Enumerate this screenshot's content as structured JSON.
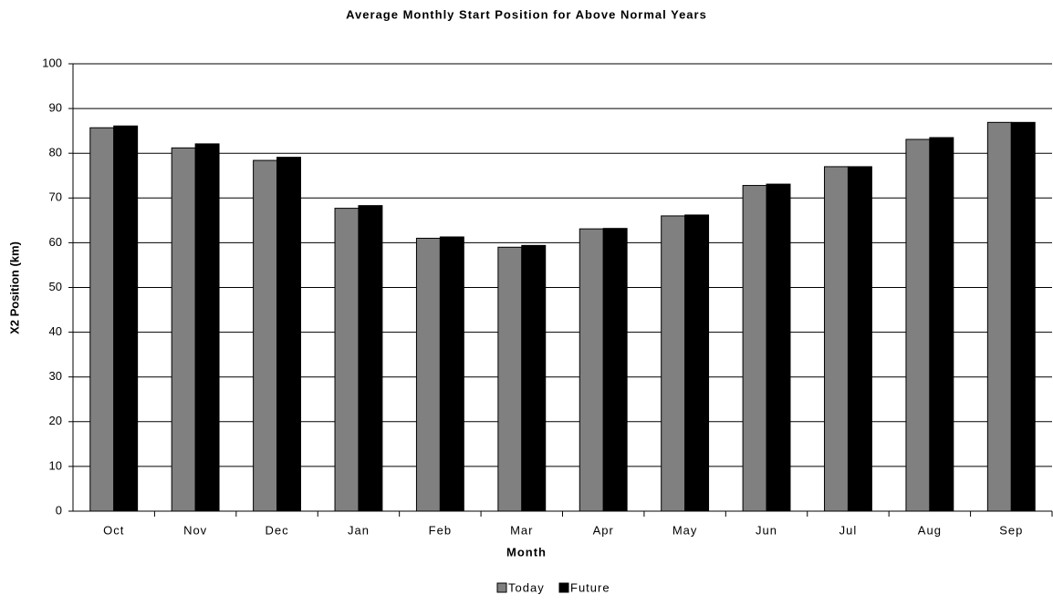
{
  "chart_data": {
    "type": "bar",
    "title": "Average Monthly Start Position for Above Normal Years",
    "x_label": "Month",
    "y_label": "X2 Position (km)",
    "categories": [
      "Oct",
      "Nov",
      "Dec",
      "Jan",
      "Feb",
      "Mar",
      "Apr",
      "May",
      "Jun",
      "Jul",
      "Aug",
      "Sep"
    ],
    "series": [
      {
        "name": "Today",
        "color": "#808080",
        "values": [
          85.7,
          81.2,
          78.4,
          67.7,
          61.0,
          59.0,
          63.1,
          66.0,
          72.8,
          77.0,
          83.1,
          86.9
        ]
      },
      {
        "name": "Future",
        "color": "#000000",
        "values": [
          86.1,
          82.1,
          79.1,
          68.3,
          61.3,
          59.4,
          63.2,
          66.2,
          73.1,
          77.0,
          83.5,
          86.9
        ]
      }
    ],
    "ylim": [
      0,
      100
    ],
    "yticks": [
      0,
      10,
      20,
      30,
      40,
      50,
      60,
      70,
      80,
      90,
      100
    ],
    "grid": true,
    "legend": "bottom"
  }
}
